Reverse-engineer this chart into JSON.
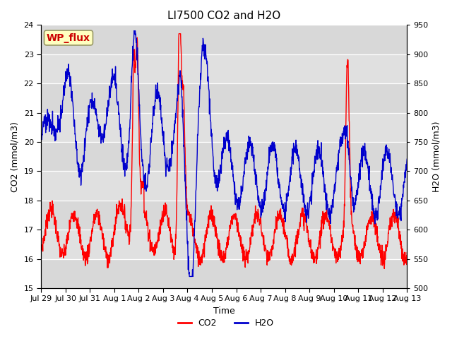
{
  "title": "LI7500 CO2 and H2O",
  "xlabel": "Time",
  "ylabel_left": "CO2 (mmol/m3)",
  "ylabel_right": "H2O (mmol/m3)",
  "annotation": "WP_flux",
  "ylim_left": [
    15.0,
    24.0
  ],
  "ylim_right": [
    500,
    950
  ],
  "yticks_left": [
    15.0,
    16.0,
    17.0,
    18.0,
    19.0,
    20.0,
    21.0,
    22.0,
    23.0,
    24.0
  ],
  "yticks_right": [
    500,
    550,
    600,
    650,
    700,
    750,
    800,
    850,
    900,
    950
  ],
  "xtick_labels": [
    "Jul 29",
    "Jul 30",
    "Jul 31",
    "Aug 1",
    "Aug 2",
    "Aug 3",
    "Aug 4",
    "Aug 5",
    "Aug 6",
    "Aug 7",
    "Aug 8",
    "Aug 9",
    "Aug 10",
    "Aug 11",
    "Aug 12",
    "Aug 13"
  ],
  "co2_color": "#FF0000",
  "h2o_color": "#0000CC",
  "background_color": "#FFFFFF",
  "plot_bg_color": "#E0E0E0",
  "grid_color": "#FFFFFF",
  "alt_band_color": "#CCCCCC",
  "legend_co2": "CO2",
  "legend_h2o": "H2O",
  "title_fontsize": 11,
  "axis_label_fontsize": 9,
  "tick_fontsize": 8,
  "legend_fontsize": 9,
  "annotation_fontsize": 10,
  "linewidth": 1.0
}
